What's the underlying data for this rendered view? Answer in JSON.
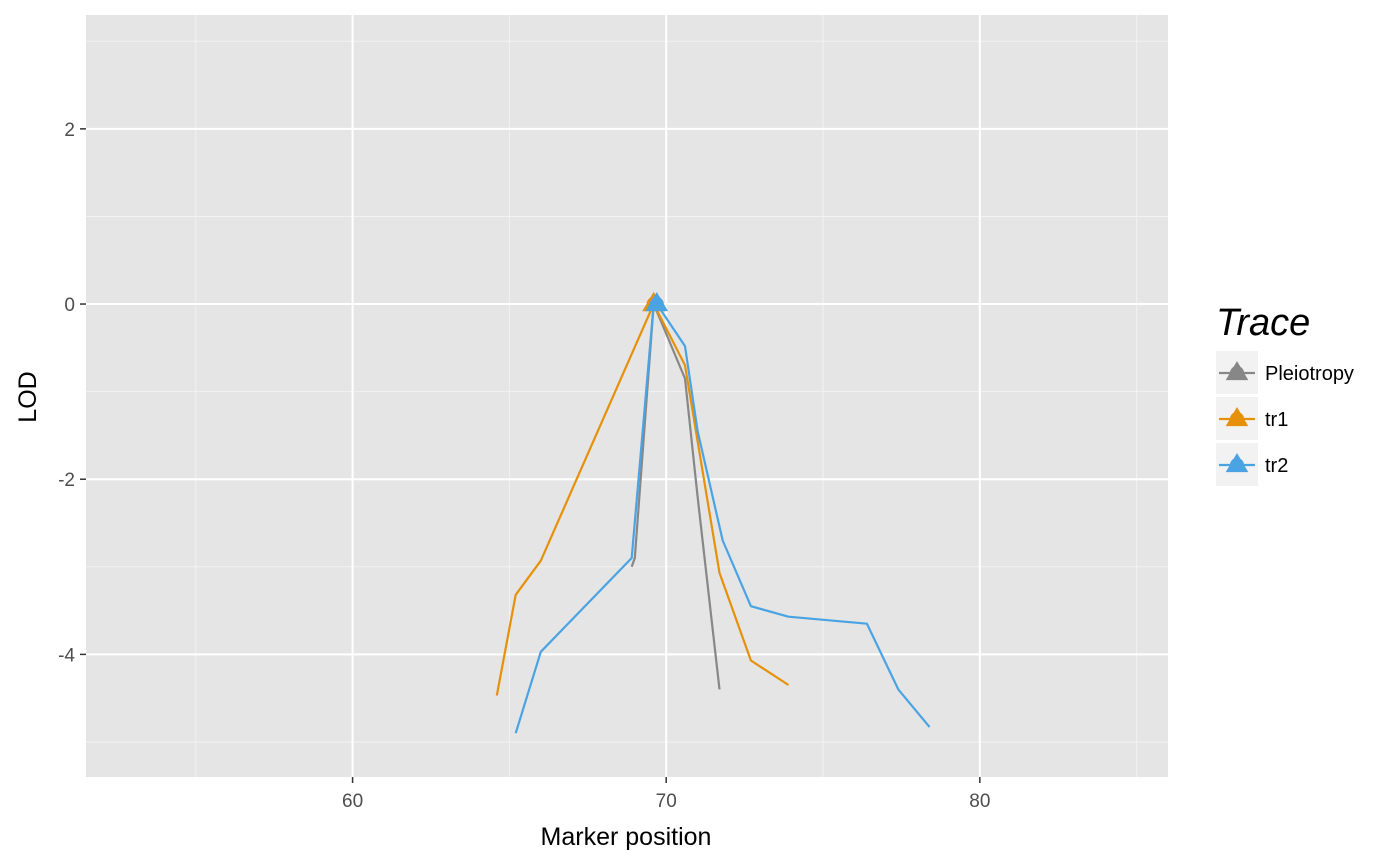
{
  "chart_data": {
    "type": "line",
    "xlabel": "Marker position",
    "ylabel": "LOD",
    "xlim": [
      51.5,
      86.0
    ],
    "ylim": [
      -5.4,
      3.3
    ],
    "x_ticks": [
      60,
      70,
      80
    ],
    "x_tick_labels": [
      "60",
      "70",
      "80"
    ],
    "y_ticks": [
      -4,
      -2,
      0,
      2
    ],
    "y_tick_labels": [
      "-4",
      "-2",
      "0",
      "2"
    ],
    "grid": true,
    "panel_background": "#e5e5e5",
    "legend": {
      "title": "Trace",
      "position": "right"
    },
    "series": [
      {
        "name": "Pleiotropy",
        "color": "#878787",
        "marker": "triangle",
        "peak": [
          69.6,
          0
        ],
        "x": [
          68.9,
          69.0,
          69.6,
          70.6,
          71.0,
          71.7
        ],
        "y": [
          -3.0,
          -2.9,
          0.0,
          -0.85,
          -2.2,
          -4.4
        ]
      },
      {
        "name": "tr1",
        "color": "#e69109",
        "marker": "triangle",
        "peak": [
          69.6,
          0
        ],
        "x": [
          64.6,
          65.2,
          66.0,
          69.6,
          70.6,
          71.7,
          72.7,
          73.9
        ],
        "y": [
          -4.47,
          -3.32,
          -2.93,
          0.0,
          -0.7,
          -3.07,
          -4.07,
          -4.35
        ]
      },
      {
        "name": "tr2",
        "color": "#4aa3e3",
        "marker": "triangle",
        "peak": [
          69.7,
          0
        ],
        "x": [
          65.2,
          66.0,
          68.9,
          69.6,
          69.7,
          70.6,
          71.0,
          71.8,
          72.7,
          73.9,
          76.4,
          77.4,
          78.4
        ],
        "y": [
          -4.9,
          -3.97,
          -2.9,
          0.0,
          0.0,
          -0.48,
          -1.45,
          -2.7,
          -3.45,
          -3.57,
          -3.65,
          -4.4,
          -4.83
        ]
      }
    ]
  }
}
